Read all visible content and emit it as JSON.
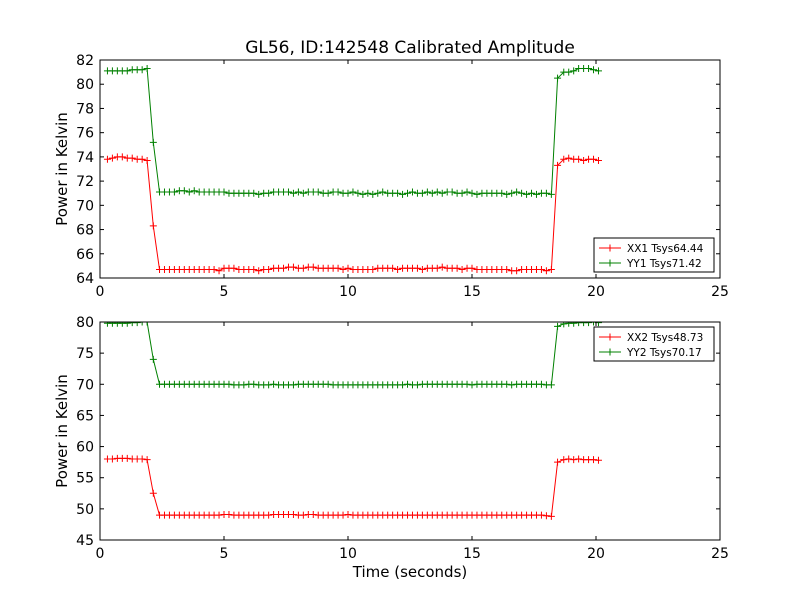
{
  "title": "GL56, ID:142548 Calibrated Amplitude",
  "chart_data": [
    {
      "type": "line",
      "xlabel": "",
      "ylabel": "Power in Kelvin",
      "xlim": [
        0,
        25
      ],
      "ylim": [
        64,
        82
      ],
      "xticks": [
        "0",
        "5",
        "10",
        "15",
        "20",
        "25"
      ],
      "yticks": [
        "64",
        "66",
        "68",
        "70",
        "72",
        "74",
        "76",
        "78",
        "80",
        "82"
      ],
      "legend_position": "lower-right",
      "grid": false,
      "series": [
        {
          "name": "XX1 Tsys64.44",
          "color": "#ff0000",
          "marker": "+",
          "x": [
            0.3,
            0.5,
            0.7,
            0.9,
            1.1,
            1.3,
            1.5,
            1.7,
            1.9,
            2.15,
            2.4,
            2.6,
            2.8,
            3.0,
            3.2,
            3.4,
            3.6,
            3.8,
            4.0,
            4.2,
            4.4,
            4.6,
            4.8,
            5.0,
            5.2,
            5.4,
            5.6,
            5.8,
            6.0,
            6.2,
            6.4,
            6.6,
            6.8,
            7.0,
            7.2,
            7.4,
            7.6,
            7.8,
            8.0,
            8.2,
            8.4,
            8.6,
            8.8,
            9.0,
            9.2,
            9.4,
            9.6,
            9.8,
            10.0,
            10.2,
            10.4,
            10.6,
            10.8,
            11.0,
            11.2,
            11.4,
            11.6,
            11.8,
            12.0,
            12.2,
            12.4,
            12.6,
            12.8,
            13.0,
            13.2,
            13.4,
            13.6,
            13.8,
            14.0,
            14.2,
            14.4,
            14.6,
            14.8,
            15.0,
            15.2,
            15.4,
            15.6,
            15.8,
            16.0,
            16.2,
            16.4,
            16.6,
            16.8,
            17.0,
            17.2,
            17.4,
            17.6,
            17.8,
            18.0,
            18.2,
            18.45,
            18.7,
            18.9,
            19.1,
            19.3,
            19.5,
            19.7,
            19.9,
            20.1
          ],
          "y": [
            73.8,
            73.9,
            74.0,
            74.0,
            73.9,
            73.9,
            73.8,
            73.8,
            73.7,
            68.3,
            64.7,
            64.7,
            64.7,
            64.7,
            64.7,
            64.7,
            64.7,
            64.7,
            64.7,
            64.7,
            64.7,
            64.7,
            64.6,
            64.8,
            64.8,
            64.8,
            64.7,
            64.7,
            64.7,
            64.7,
            64.6,
            64.7,
            64.7,
            64.8,
            64.8,
            64.8,
            64.9,
            64.9,
            64.8,
            64.8,
            64.9,
            64.9,
            64.8,
            64.8,
            64.8,
            64.8,
            64.8,
            64.7,
            64.8,
            64.7,
            64.7,
            64.7,
            64.7,
            64.7,
            64.8,
            64.8,
            64.8,
            64.8,
            64.7,
            64.8,
            64.8,
            64.8,
            64.8,
            64.7,
            64.8,
            64.8,
            64.8,
            64.9,
            64.8,
            64.8,
            64.8,
            64.7,
            64.8,
            64.8,
            64.7,
            64.7,
            64.7,
            64.7,
            64.7,
            64.7,
            64.7,
            64.6,
            64.6,
            64.7,
            64.7,
            64.7,
            64.7,
            64.7,
            64.6,
            64.7,
            73.3,
            73.8,
            73.9,
            73.8,
            73.8,
            73.7,
            73.8,
            73.8,
            73.7
          ]
        },
        {
          "name": "YY1 Tsys71.42",
          "color": "#008000",
          "marker": "+",
          "x": [
            0.3,
            0.5,
            0.7,
            0.9,
            1.1,
            1.3,
            1.5,
            1.7,
            1.9,
            2.15,
            2.4,
            2.6,
            2.8,
            3.0,
            3.2,
            3.4,
            3.6,
            3.8,
            4.0,
            4.2,
            4.4,
            4.6,
            4.8,
            5.0,
            5.2,
            5.4,
            5.6,
            5.8,
            6.0,
            6.2,
            6.4,
            6.6,
            6.8,
            7.0,
            7.2,
            7.4,
            7.6,
            7.8,
            8.0,
            8.2,
            8.4,
            8.6,
            8.8,
            9.0,
            9.2,
            9.4,
            9.6,
            9.8,
            10.0,
            10.2,
            10.4,
            10.6,
            10.8,
            11.0,
            11.2,
            11.4,
            11.6,
            11.8,
            12.0,
            12.2,
            12.4,
            12.6,
            12.8,
            13.0,
            13.2,
            13.4,
            13.6,
            13.8,
            14.0,
            14.2,
            14.4,
            14.6,
            14.8,
            15.0,
            15.2,
            15.4,
            15.6,
            15.8,
            16.0,
            16.2,
            16.4,
            16.6,
            16.8,
            17.0,
            17.2,
            17.4,
            17.6,
            17.8,
            18.0,
            18.2,
            18.45,
            18.7,
            18.9,
            19.1,
            19.3,
            19.5,
            19.7,
            19.9,
            20.1
          ],
          "y": [
            81.1,
            81.1,
            81.1,
            81.1,
            81.1,
            81.2,
            81.2,
            81.2,
            81.3,
            75.2,
            71.1,
            71.1,
            71.1,
            71.1,
            71.2,
            71.2,
            71.1,
            71.2,
            71.1,
            71.1,
            71.1,
            71.1,
            71.1,
            71.1,
            71.0,
            71.0,
            71.0,
            71.0,
            71.0,
            71.0,
            70.9,
            71.0,
            71.0,
            71.1,
            71.1,
            71.1,
            71.1,
            71.0,
            71.1,
            71.0,
            71.1,
            71.1,
            71.1,
            71.0,
            71.0,
            71.1,
            71.1,
            71.0,
            71.0,
            71.1,
            71.0,
            70.9,
            71.0,
            70.9,
            71.0,
            71.1,
            71.0,
            71.0,
            71.0,
            70.9,
            71.0,
            71.1,
            71.0,
            71.0,
            71.1,
            71.0,
            71.1,
            71.0,
            71.1,
            71.1,
            71.0,
            71.0,
            71.1,
            71.0,
            70.9,
            71.0,
            71.0,
            71.0,
            71.0,
            71.0,
            70.9,
            71.0,
            71.1,
            71.0,
            70.9,
            71.0,
            70.9,
            71.0,
            71.0,
            70.9,
            80.5,
            81.0,
            81.0,
            81.1,
            81.3,
            81.3,
            81.3,
            81.2,
            81.1
          ]
        }
      ]
    },
    {
      "type": "line",
      "xlabel": "Time (seconds)",
      "ylabel": "Power in Kelvin",
      "xlim": [
        0,
        25
      ],
      "ylim": [
        45,
        80
      ],
      "xticks": [
        "0",
        "5",
        "10",
        "15",
        "20",
        "25"
      ],
      "yticks": [
        "45",
        "50",
        "55",
        "60",
        "65",
        "70",
        "75",
        "80"
      ],
      "legend_position": "upper-right",
      "grid": false,
      "series": [
        {
          "name": "XX2 Tsys48.73",
          "color": "#ff0000",
          "marker": "+",
          "x": [
            0.3,
            0.5,
            0.7,
            0.9,
            1.1,
            1.3,
            1.5,
            1.7,
            1.9,
            2.15,
            2.4,
            2.6,
            2.8,
            3.0,
            3.2,
            3.4,
            3.6,
            3.8,
            4.0,
            4.2,
            4.4,
            4.6,
            4.8,
            5.0,
            5.2,
            5.4,
            5.6,
            5.8,
            6.0,
            6.2,
            6.4,
            6.6,
            6.8,
            7.0,
            7.2,
            7.4,
            7.6,
            7.8,
            8.0,
            8.2,
            8.4,
            8.6,
            8.8,
            9.0,
            9.2,
            9.4,
            9.6,
            9.8,
            10.0,
            10.2,
            10.4,
            10.6,
            10.8,
            11.0,
            11.2,
            11.4,
            11.6,
            11.8,
            12.0,
            12.2,
            12.4,
            12.6,
            12.8,
            13.0,
            13.2,
            13.4,
            13.6,
            13.8,
            14.0,
            14.2,
            14.4,
            14.6,
            14.8,
            15.0,
            15.2,
            15.4,
            15.6,
            15.8,
            16.0,
            16.2,
            16.4,
            16.6,
            16.8,
            17.0,
            17.2,
            17.4,
            17.6,
            17.8,
            18.0,
            18.2,
            18.45,
            18.7,
            18.9,
            19.1,
            19.3,
            19.5,
            19.7,
            19.9,
            20.1
          ],
          "y": [
            58.0,
            58.0,
            58.1,
            58.1,
            58.1,
            58.0,
            58.0,
            58.0,
            57.9,
            52.5,
            49.0,
            49.0,
            49.0,
            49.0,
            49.0,
            49.0,
            49.0,
            49.0,
            49.0,
            49.0,
            49.0,
            49.0,
            49.0,
            49.1,
            49.1,
            49.0,
            49.0,
            49.0,
            49.0,
            49.0,
            49.0,
            49.0,
            49.0,
            49.1,
            49.1,
            49.1,
            49.1,
            49.1,
            49.0,
            49.0,
            49.1,
            49.1,
            49.0,
            49.0,
            49.0,
            49.0,
            49.0,
            49.0,
            49.1,
            49.0,
            49.0,
            49.0,
            49.0,
            49.0,
            49.0,
            49.0,
            49.0,
            49.0,
            49.0,
            49.0,
            49.0,
            49.0,
            49.0,
            49.0,
            49.0,
            49.0,
            49.0,
            49.0,
            49.0,
            49.0,
            49.0,
            49.0,
            49.0,
            49.0,
            49.0,
            49.0,
            49.0,
            49.0,
            49.0,
            49.0,
            49.0,
            49.0,
            49.0,
            49.0,
            49.0,
            49.0,
            49.0,
            49.0,
            48.9,
            48.8,
            57.5,
            57.9,
            58.0,
            57.9,
            58.0,
            57.9,
            57.9,
            57.9,
            57.8
          ]
        },
        {
          "name": "YY2 Tsys70.17",
          "color": "#008000",
          "marker": "+",
          "x": [
            0.3,
            0.5,
            0.7,
            0.9,
            1.1,
            1.3,
            1.5,
            1.7,
            1.9,
            2.15,
            2.4,
            2.6,
            2.8,
            3.0,
            3.2,
            3.4,
            3.6,
            3.8,
            4.0,
            4.2,
            4.4,
            4.6,
            4.8,
            5.0,
            5.2,
            5.4,
            5.6,
            5.8,
            6.0,
            6.2,
            6.4,
            6.6,
            6.8,
            7.0,
            7.2,
            7.4,
            7.6,
            7.8,
            8.0,
            8.2,
            8.4,
            8.6,
            8.8,
            9.0,
            9.2,
            9.4,
            9.6,
            9.8,
            10.0,
            10.2,
            10.4,
            10.6,
            10.8,
            11.0,
            11.2,
            11.4,
            11.6,
            11.8,
            12.0,
            12.2,
            12.4,
            12.6,
            12.8,
            13.0,
            13.2,
            13.4,
            13.6,
            13.8,
            14.0,
            14.2,
            14.4,
            14.6,
            14.8,
            15.0,
            15.2,
            15.4,
            15.6,
            15.8,
            16.0,
            16.2,
            16.4,
            16.6,
            16.8,
            17.0,
            17.2,
            17.4,
            17.6,
            17.8,
            18.0,
            18.2,
            18.45,
            18.7,
            18.9,
            19.1,
            19.3,
            19.5,
            19.7,
            19.9,
            20.1
          ],
          "y": [
            79.8,
            79.8,
            79.8,
            79.8,
            79.8,
            79.9,
            79.9,
            80.0,
            80.0,
            74.0,
            70.0,
            70.0,
            70.0,
            70.0,
            70.0,
            70.0,
            70.0,
            70.0,
            70.0,
            70.0,
            70.0,
            70.0,
            70.0,
            70.0,
            70.0,
            69.9,
            69.9,
            69.9,
            70.0,
            70.0,
            69.9,
            69.9,
            69.9,
            70.0,
            69.9,
            69.9,
            69.9,
            69.9,
            70.0,
            70.0,
            70.0,
            70.0,
            70.0,
            70.0,
            70.0,
            69.9,
            69.9,
            69.9,
            69.9,
            69.9,
            69.9,
            69.9,
            69.9,
            69.9,
            69.9,
            69.9,
            69.9,
            69.9,
            69.9,
            69.9,
            70.0,
            69.9,
            69.9,
            70.0,
            70.0,
            70.0,
            70.0,
            70.0,
            70.0,
            70.0,
            70.0,
            70.0,
            70.0,
            69.9,
            70.0,
            70.0,
            70.0,
            70.0,
            70.0,
            70.0,
            70.0,
            69.9,
            70.0,
            70.0,
            70.0,
            70.0,
            70.0,
            70.0,
            69.9,
            69.9,
            79.3,
            79.7,
            79.8,
            79.8,
            79.9,
            79.9,
            79.9,
            80.0,
            79.9
          ]
        }
      ]
    }
  ]
}
